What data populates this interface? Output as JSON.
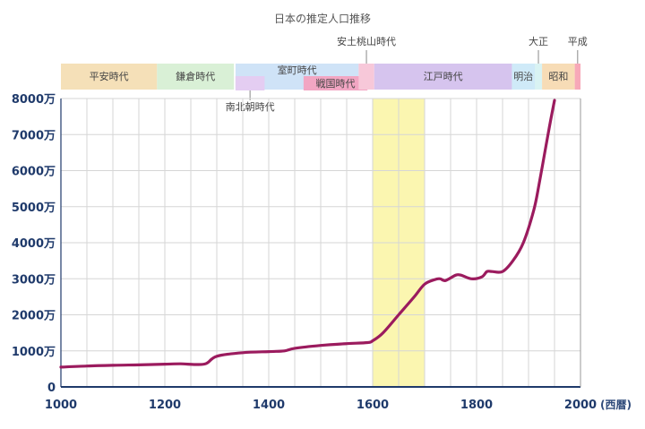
{
  "chart_data": {
    "type": "line",
    "title": "日本の推定人口推移",
    "xlabel": "(西暦)",
    "ylabel": "",
    "xlim": [
      1000,
      2000
    ],
    "ylim": [
      0,
      8000
    ],
    "x_ticks": [
      1000,
      1200,
      1400,
      1600,
      1800,
      2000
    ],
    "x_tick_labels": [
      "1000",
      "1200",
      "1400",
      "1600",
      "1800",
      "2000"
    ],
    "y_ticks": [
      0,
      1000,
      2000,
      3000,
      4000,
      5000,
      6000,
      7000,
      8000
    ],
    "y_tick_labels": [
      "0",
      "1000万",
      "2000万",
      "3000万",
      "4000万",
      "5000万",
      "6000万",
      "7000万",
      "8000万"
    ],
    "grid": true,
    "line_color": "#9b1b5e",
    "highlight": {
      "from": 1600,
      "to": 1700,
      "color": "#fbf6b0"
    },
    "series": [
      {
        "name": "",
        "x": [
          1000,
          1050,
          1100,
          1150,
          1200,
          1230,
          1260,
          1280,
          1300,
          1350,
          1400,
          1430,
          1450,
          1500,
          1550,
          1590,
          1600,
          1620,
          1650,
          1680,
          1700,
          1720,
          1730,
          1740,
          1760,
          1770,
          1790,
          1810,
          1820,
          1830,
          1850,
          1870,
          1890,
          1910,
          1920,
          1930,
          1940,
          1950
        ],
        "values": [
          550,
          580,
          600,
          610,
          630,
          640,
          620,
          650,
          850,
          950,
          980,
          1000,
          1070,
          1150,
          1200,
          1230,
          1280,
          1500,
          2000,
          2500,
          2850,
          2980,
          3000,
          2950,
          3100,
          3100,
          3000,
          3050,
          3200,
          3200,
          3200,
          3500,
          4000,
          4900,
          5600,
          6400,
          7200,
          7950
        ]
      }
    ],
    "eras": [
      {
        "name": "平安時代",
        "from": 1000,
        "to": 1185,
        "row": "top",
        "color": "#f5e0b8",
        "label": "inside"
      },
      {
        "name": "鎌倉時代",
        "from": 1185,
        "to": 1333,
        "row": "top",
        "color": "#d9f0d6",
        "label": "inside"
      },
      {
        "name": "室町時代",
        "from": 1336,
        "to": 1573,
        "row": "top",
        "color": "#cfe3f7",
        "label": "inside"
      },
      {
        "name": "南北朝時代",
        "from": 1336,
        "to": 1392,
        "row": "sub",
        "color": "#e4cdf2",
        "label": "below"
      },
      {
        "name": "戦国時代",
        "from": 1467,
        "to": 1590,
        "row": "sub",
        "color": "#f2a6c3",
        "label": "inside"
      },
      {
        "name": "安土桃山時代",
        "from": 1573,
        "to": 1603,
        "row": "top",
        "color": "#f7c8d9",
        "label": "above"
      },
      {
        "name": "江戸時代",
        "from": 1603,
        "to": 1868,
        "row": "top",
        "color": "#d6c4ee",
        "label": "inside"
      },
      {
        "name": "明治",
        "from": 1868,
        "to": 1912,
        "row": "top",
        "color": "#cfeaf8",
        "label": "inside"
      },
      {
        "name": "大正",
        "from": 1912,
        "to": 1926,
        "row": "top",
        "color": "#d9f3f3",
        "label": "above"
      },
      {
        "name": "昭和",
        "from": 1926,
        "to": 1989,
        "row": "top",
        "color": "#f7dcb6",
        "label": "inside"
      },
      {
        "name": "平成",
        "from": 1989,
        "to": 2000,
        "row": "top",
        "color": "#f7a8b8",
        "label": "above"
      }
    ]
  }
}
